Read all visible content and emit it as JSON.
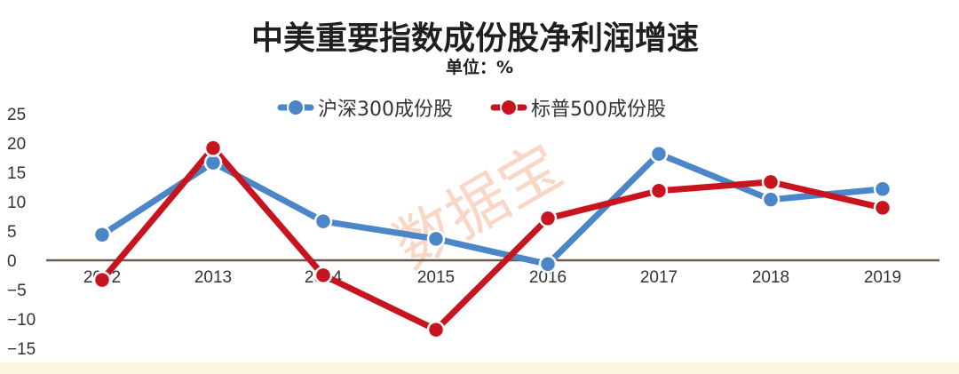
{
  "chart_data": {
    "type": "line",
    "title": "中美重要指数成份股净利润增速",
    "subtitle": "单位：%",
    "categories": [
      "2012",
      "2013",
      "2014",
      "2015",
      "2016",
      "2017",
      "2018",
      "2019"
    ],
    "series": [
      {
        "name": "沪深300成份股",
        "color": "#4a86c8",
        "values": [
          4.2,
          16.5,
          6.5,
          3.5,
          -0.8,
          18.0,
          10.2,
          12.0
        ]
      },
      {
        "name": "标普500成份股",
        "color": "#c8141e",
        "values": [
          -3.5,
          19.0,
          -2.7,
          -12.0,
          7.0,
          11.7,
          13.2,
          8.8
        ]
      }
    ],
    "y_ticks": [
      "25",
      "20",
      "15",
      "10",
      "5",
      "0",
      "−5",
      "−10",
      "−15"
    ],
    "ylim": [
      -15,
      25
    ],
    "legend": "top-center",
    "grid": false,
    "axis_color": "#6b5a52"
  },
  "watermark": "数据宝"
}
